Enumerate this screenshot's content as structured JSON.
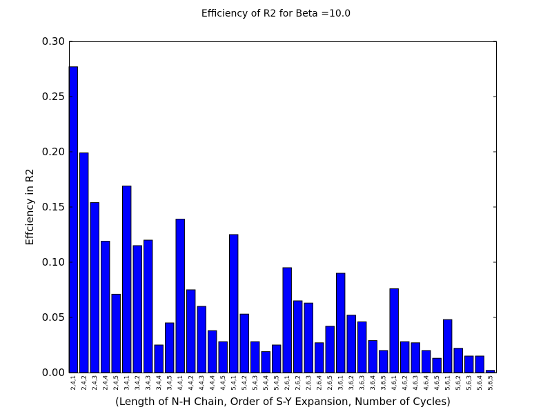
{
  "chart_data": {
    "type": "bar",
    "title": "Efficiency of R2 for Beta =10.0",
    "xlabel": "(Length of N-H Chain, Order of S-Y Expansion, Number of Cycles)",
    "ylabel": "Effciency in R2",
    "ylim": [
      0,
      0.3
    ],
    "yticks": [
      "0.00",
      "0.05",
      "0.10",
      "0.15",
      "0.20",
      "0.25",
      "0.30"
    ],
    "grid": false,
    "bar_color": "#0000ff",
    "categories": [
      "2,4,1",
      "2,4,2",
      "2,4,3",
      "2,4,4",
      "2,4,5",
      "3,4,1",
      "3,4,2",
      "3,4,3",
      "3,4,4",
      "3,4,5",
      "4,4,1",
      "4,4,2",
      "4,4,3",
      "4,4,4",
      "4,4,5",
      "5,4,1",
      "5,4,2",
      "5,4,3",
      "5,4,4",
      "5,4,5",
      "2,6,1",
      "2,6,2",
      "2,6,3",
      "2,6,4",
      "2,6,5",
      "3,6,1",
      "3,6,2",
      "3,6,3",
      "3,6,4",
      "3,6,5",
      "4,6,1",
      "4,6,2",
      "4,6,3",
      "4,6,4",
      "4,6,5",
      "5,6,1",
      "5,6,2",
      "5,6,3",
      "5,6,4",
      "5,6,5"
    ],
    "values": [
      0.277,
      0.199,
      0.154,
      0.119,
      0.071,
      0.169,
      0.115,
      0.12,
      0.025,
      0.045,
      0.139,
      0.075,
      0.06,
      0.038,
      0.028,
      0.125,
      0.053,
      0.028,
      0.019,
      0.025,
      0.095,
      0.065,
      0.063,
      0.027,
      0.042,
      0.09,
      0.052,
      0.046,
      0.029,
      0.02,
      0.076,
      0.028,
      0.027,
      0.02,
      0.013,
      0.048,
      0.022,
      0.015,
      0.015,
      0.002
    ]
  }
}
